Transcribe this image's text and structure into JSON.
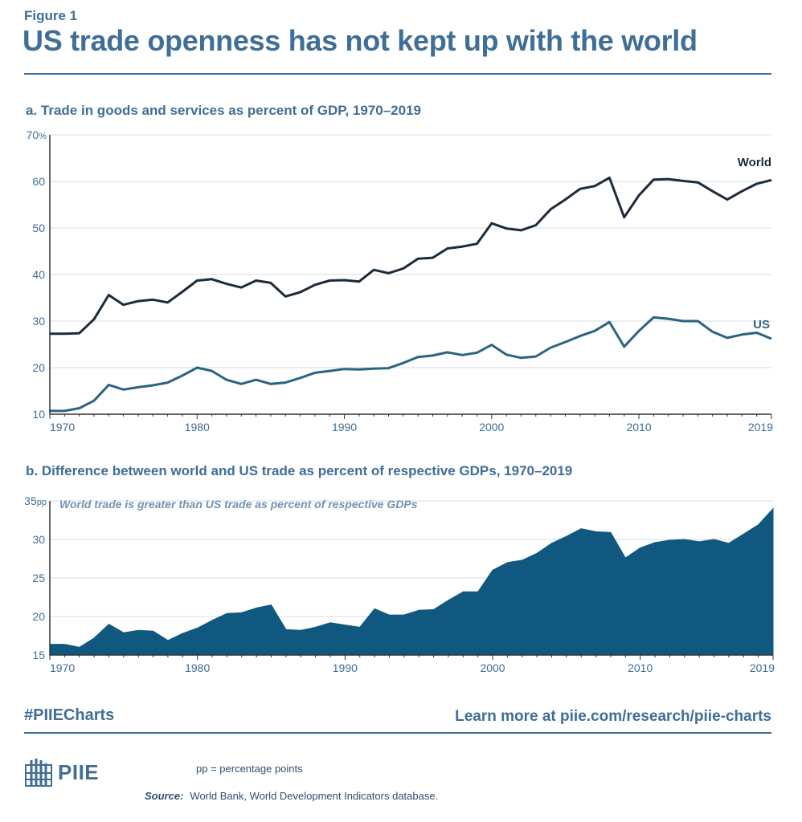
{
  "figure_label": "Figure 1",
  "title": "US trade openness has not kept up with the world",
  "footer": {
    "hashtag": "#PIIECharts",
    "learn_more": "Learn more at piie.com/research/piie-charts",
    "logo_text": "PIIE",
    "note": "pp = percentage points",
    "source_label": "Source:",
    "source_text": "World Bank, World Development Indicators database."
  },
  "colors": {
    "accent": "#3f6e96",
    "world_line": "#1c2b3a",
    "us_line": "#2a6482",
    "area_fill": "#115880",
    "grid": "#d6dee6"
  },
  "chart_data": [
    {
      "type": "line",
      "title": "a. Trade in goods and services as percent of GDP, 1970–2019",
      "ylim": [
        10,
        70
      ],
      "yticks": [
        10,
        20,
        30,
        40,
        50,
        60,
        70
      ],
      "ytick_unit": "%",
      "xlim": [
        1970,
        2019
      ],
      "xticks": [
        1970,
        1980,
        1990,
        2000,
        2010,
        2019
      ],
      "grid": true,
      "series": [
        {
          "name": "World",
          "x": [
            1970,
            1971,
            1972,
            1973,
            1974,
            1975,
            1976,
            1977,
            1978,
            1979,
            1980,
            1981,
            1982,
            1983,
            1984,
            1985,
            1986,
            1987,
            1988,
            1989,
            1990,
            1991,
            1992,
            1993,
            1994,
            1995,
            1996,
            1997,
            1998,
            1999,
            2000,
            2001,
            2002,
            2003,
            2004,
            2005,
            2006,
            2007,
            2008,
            2009,
            2010,
            2011,
            2012,
            2013,
            2014,
            2015,
            2016,
            2017,
            2018,
            2019
          ],
          "values": [
            27.3,
            27.3,
            27.4,
            30.4,
            35.6,
            33.5,
            34.3,
            34.6,
            34.0,
            36.3,
            38.7,
            39.0,
            38.0,
            37.2,
            38.7,
            38.2,
            35.3,
            36.2,
            37.8,
            38.7,
            38.8,
            38.5,
            41.0,
            40.3,
            41.3,
            43.4,
            43.6,
            45.6,
            46.0,
            46.6,
            51.0,
            49.9,
            49.5,
            50.6,
            54.0,
            56.1,
            58.4,
            59.0,
            60.8,
            52.3,
            57.0,
            60.4,
            60.5,
            60.1,
            59.8,
            57.9,
            56.1,
            57.9,
            59.5,
            60.3
          ]
        },
        {
          "name": "US",
          "x": [
            1970,
            1971,
            1972,
            1973,
            1974,
            1975,
            1976,
            1977,
            1978,
            1979,
            1980,
            1981,
            1982,
            1983,
            1984,
            1985,
            1986,
            1987,
            1988,
            1989,
            1990,
            1991,
            1992,
            1993,
            1994,
            1995,
            1996,
            1997,
            1998,
            1999,
            2000,
            2001,
            2002,
            2003,
            2004,
            2005,
            2006,
            2007,
            2008,
            2009,
            2010,
            2011,
            2012,
            2013,
            2014,
            2015,
            2016,
            2017,
            2018,
            2019
          ],
          "values": [
            10.7,
            10.7,
            11.3,
            12.9,
            16.3,
            15.3,
            15.8,
            16.2,
            16.8,
            18.3,
            20.0,
            19.3,
            17.4,
            16.5,
            17.4,
            16.5,
            16.8,
            17.8,
            18.9,
            19.3,
            19.7,
            19.6,
            19.8,
            19.9,
            21.0,
            22.3,
            22.6,
            23.3,
            22.7,
            23.2,
            24.9,
            22.8,
            22.1,
            22.4,
            24.3,
            25.5,
            26.8,
            27.9,
            29.8,
            24.5,
            27.9,
            30.8,
            30.5,
            30.0,
            30.0,
            27.7,
            26.4,
            27.1,
            27.5,
            26.2
          ]
        }
      ]
    },
    {
      "type": "area",
      "title": "b. Difference between world and US trade as percent of respective GDPs, 1970–2019",
      "annotation": "World trade is greater than US trade as percent of respective GDPs",
      "ylim": [
        15,
        35
      ],
      "yticks": [
        15,
        20,
        25,
        30,
        35
      ],
      "ytick_unit": "pp",
      "xlim": [
        1970,
        2019
      ],
      "xticks": [
        1970,
        1980,
        1990,
        2000,
        2010,
        2019
      ],
      "grid": true,
      "series": [
        {
          "x": [
            1970,
            1971,
            1972,
            1973,
            1974,
            1975,
            1976,
            1977,
            1978,
            1979,
            1980,
            1981,
            1982,
            1983,
            1984,
            1985,
            1986,
            1987,
            1988,
            1989,
            1990,
            1991,
            1992,
            1993,
            1994,
            1995,
            1996,
            1997,
            1998,
            1999,
            2000,
            2001,
            2002,
            2003,
            2004,
            2005,
            2006,
            2007,
            2008,
            2009,
            2010,
            2011,
            2012,
            2013,
            2014,
            2015,
            2016,
            2017,
            2018,
            2019
          ],
          "values": [
            16.4,
            16.4,
            16.0,
            17.2,
            19.0,
            17.9,
            18.2,
            18.1,
            16.9,
            17.8,
            18.5,
            19.5,
            20.4,
            20.5,
            21.1,
            21.5,
            18.3,
            18.2,
            18.6,
            19.2,
            18.9,
            18.6,
            21.0,
            20.2,
            20.2,
            20.8,
            20.9,
            22.1,
            23.2,
            23.2,
            26.0,
            27.0,
            27.3,
            28.2,
            29.5,
            30.4,
            31.4,
            31.0,
            30.9,
            27.6,
            28.9,
            29.6,
            29.9,
            30.0,
            29.7,
            30.0,
            29.5,
            30.7,
            31.9,
            34.0
          ]
        }
      ]
    }
  ]
}
